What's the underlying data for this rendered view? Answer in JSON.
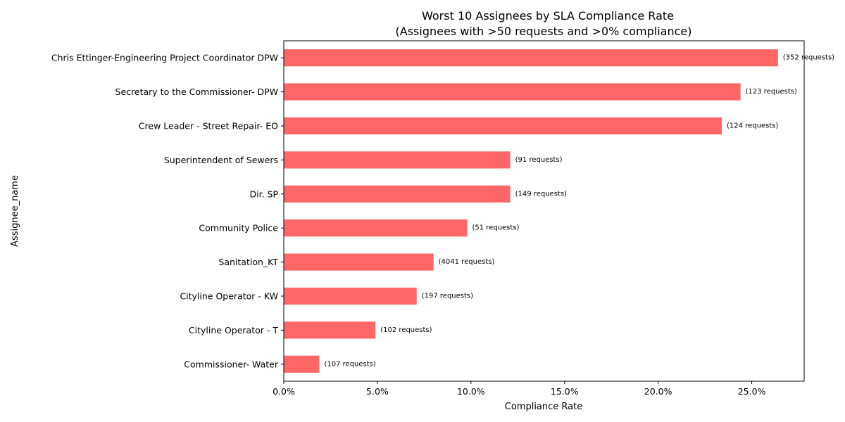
{
  "chart_data": {
    "type": "bar",
    "orientation": "horizontal",
    "title": "Worst 10 Assignees by SLA Compliance Rate",
    "subtitle": "(Assignees with >50 requests and >0% compliance)",
    "xlabel": "Compliance Rate",
    "ylabel": "Assignee_name",
    "xlim": [
      0,
      27.8
    ],
    "x_ticks": [
      0,
      5,
      10,
      15,
      20,
      25
    ],
    "x_tick_labels": [
      "0.0%",
      "5.0%",
      "10.0%",
      "15.0%",
      "20.0%",
      "25.0%"
    ],
    "categories": [
      "Chris Ettinger-Engineering Project Coordinator DPW",
      "Secretary to the Commissioner- DPW",
      "Crew Leader - Street Repair- EO",
      "Superintendent of Sewers",
      "Dir. SP",
      "Community Police",
      "Sanitation_KT",
      "Cityline Operator - KW",
      "Cityline Operator - T",
      "Commissioner- Water"
    ],
    "values": [
      26.4,
      24.4,
      23.4,
      12.1,
      12.1,
      9.8,
      8.0,
      7.1,
      4.9,
      1.9
    ],
    "bar_labels": [
      "(352 requests)",
      "(123 requests)",
      "(124 requests)",
      "(91 requests)",
      "(149 requests)",
      "(51 requests)",
      "(4041 requests)",
      "(197 requests)",
      "(102 requests)",
      "(107 requests)"
    ],
    "bar_color": "#ff6666",
    "grid": false,
    "legend": "none"
  }
}
